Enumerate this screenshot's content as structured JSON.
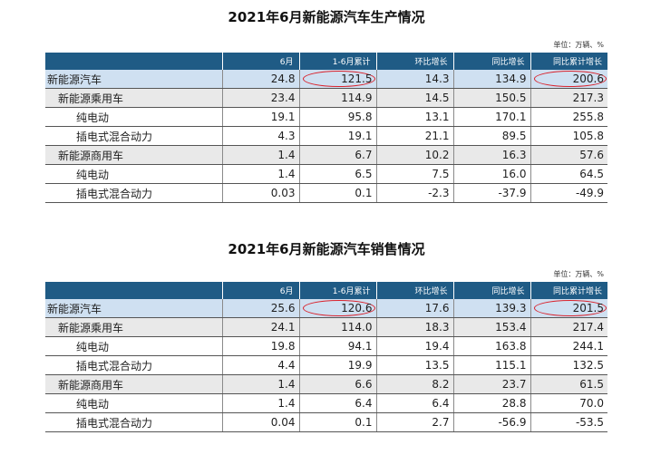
{
  "production": {
    "title": "2021年6月新能源汽车生产情况",
    "unit": "单位：万辆、%",
    "headers": [
      "",
      "6月",
      "1-6月累计",
      "环比增长",
      "同比增长",
      "同比累计增长"
    ],
    "rows": [
      {
        "label": "新能源汽车",
        "level": 0,
        "values": [
          "24.8",
          "121.5",
          "14.3",
          "134.9",
          "200.6"
        ],
        "circled": [
          1,
          4
        ]
      },
      {
        "label": "新能源乘用车",
        "level": 1,
        "values": [
          "23.4",
          "114.9",
          "14.5",
          "150.5",
          "217.3"
        ],
        "circled": []
      },
      {
        "label": "纯电动",
        "level": 2,
        "values": [
          "19.1",
          "95.8",
          "13.1",
          "170.1",
          "255.8"
        ],
        "circled": []
      },
      {
        "label": "插电式混合动力",
        "level": 2,
        "values": [
          "4.3",
          "19.1",
          "21.1",
          "89.5",
          "105.8"
        ],
        "circled": []
      },
      {
        "label": "新能源商用车",
        "level": 1,
        "values": [
          "1.4",
          "6.7",
          "10.2",
          "16.3",
          "57.6"
        ],
        "circled": []
      },
      {
        "label": "纯电动",
        "level": 2,
        "values": [
          "1.4",
          "6.5",
          "7.5",
          "16.0",
          "64.5"
        ],
        "circled": []
      },
      {
        "label": "插电式混合动力",
        "level": 2,
        "values": [
          "0.03",
          "0.1",
          "-2.3",
          "-37.9",
          "-49.9"
        ],
        "circled": []
      }
    ]
  },
  "sales": {
    "title": "2021年6月新能源汽车销售情况",
    "unit": "单位：万辆、%",
    "headers": [
      "",
      "6月",
      "1-6月累计",
      "环比增长",
      "同比增长",
      "同比累计增长"
    ],
    "rows": [
      {
        "label": "新能源汽车",
        "level": 0,
        "values": [
          "25.6",
          "120.6",
          "17.6",
          "139.3",
          "201.5"
        ],
        "circled": [
          1,
          4
        ]
      },
      {
        "label": "新能源乘用车",
        "level": 1,
        "values": [
          "24.1",
          "114.0",
          "18.3",
          "153.4",
          "217.4"
        ],
        "circled": []
      },
      {
        "label": "纯电动",
        "level": 2,
        "values": [
          "19.8",
          "94.1",
          "19.4",
          "163.8",
          "244.1"
        ],
        "circled": []
      },
      {
        "label": "插电式混合动力",
        "level": 2,
        "values": [
          "4.4",
          "19.9",
          "13.5",
          "115.1",
          "132.5"
        ],
        "circled": []
      },
      {
        "label": "新能源商用车",
        "level": 1,
        "values": [
          "1.4",
          "6.6",
          "8.2",
          "23.7",
          "61.5"
        ],
        "circled": []
      },
      {
        "label": "纯电动",
        "level": 2,
        "values": [
          "1.4",
          "6.4",
          "6.4",
          "28.8",
          "70.0"
        ],
        "circled": []
      },
      {
        "label": "插电式混合动力",
        "level": 2,
        "values": [
          "0.04",
          "0.1",
          "2.7",
          "-56.9",
          "-53.5"
        ],
        "circled": []
      }
    ]
  },
  "colors": {
    "header_bg": "#1f5b85",
    "top_row_bg": "#cfe0f1",
    "category_row_bg": "#e9e9e9",
    "highlight_circle": "#d9232d"
  }
}
